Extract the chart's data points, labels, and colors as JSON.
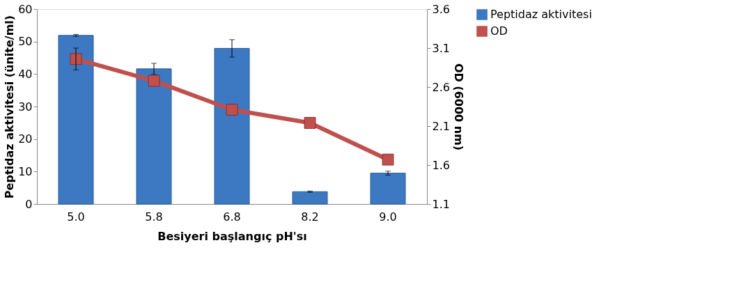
{
  "chart_data": {
    "type": "bar",
    "xlabel": "Besiyeri başlangıç pH'sı",
    "ylabel": "Peptidaz aktivitesi (ünite/ml)",
    "y2label": "OD (6000 nm)",
    "categories": [
      "5.0",
      "5.8",
      "6.8",
      "8.2",
      "9.0"
    ],
    "series": [
      {
        "name": "Peptidaz aktivitesi",
        "color": "#3d78c2",
        "values": [
          51.9,
          41.6,
          47.9,
          3.8,
          9.5
        ],
        "errors": [
          0.3,
          1.7,
          2.7,
          0.2,
          0.6
        ]
      },
      {
        "name": "OD",
        "type": "line",
        "axis": "y2",
        "color": "#c0504d",
        "marker": "square",
        "values": [
          2.96,
          2.68,
          2.31,
          2.14,
          1.67
        ],
        "errors": [
          0.14,
          null,
          null,
          null,
          null
        ]
      }
    ],
    "ylim": [
      0,
      60
    ],
    "yticks": [
      0,
      10,
      20,
      30,
      40,
      50,
      60
    ],
    "y2lim": [
      1.1,
      3.6
    ],
    "y2ticks": [
      1.1,
      1.6,
      2.1,
      2.6,
      3.1,
      3.6
    ],
    "grid": false,
    "legend": "right"
  }
}
